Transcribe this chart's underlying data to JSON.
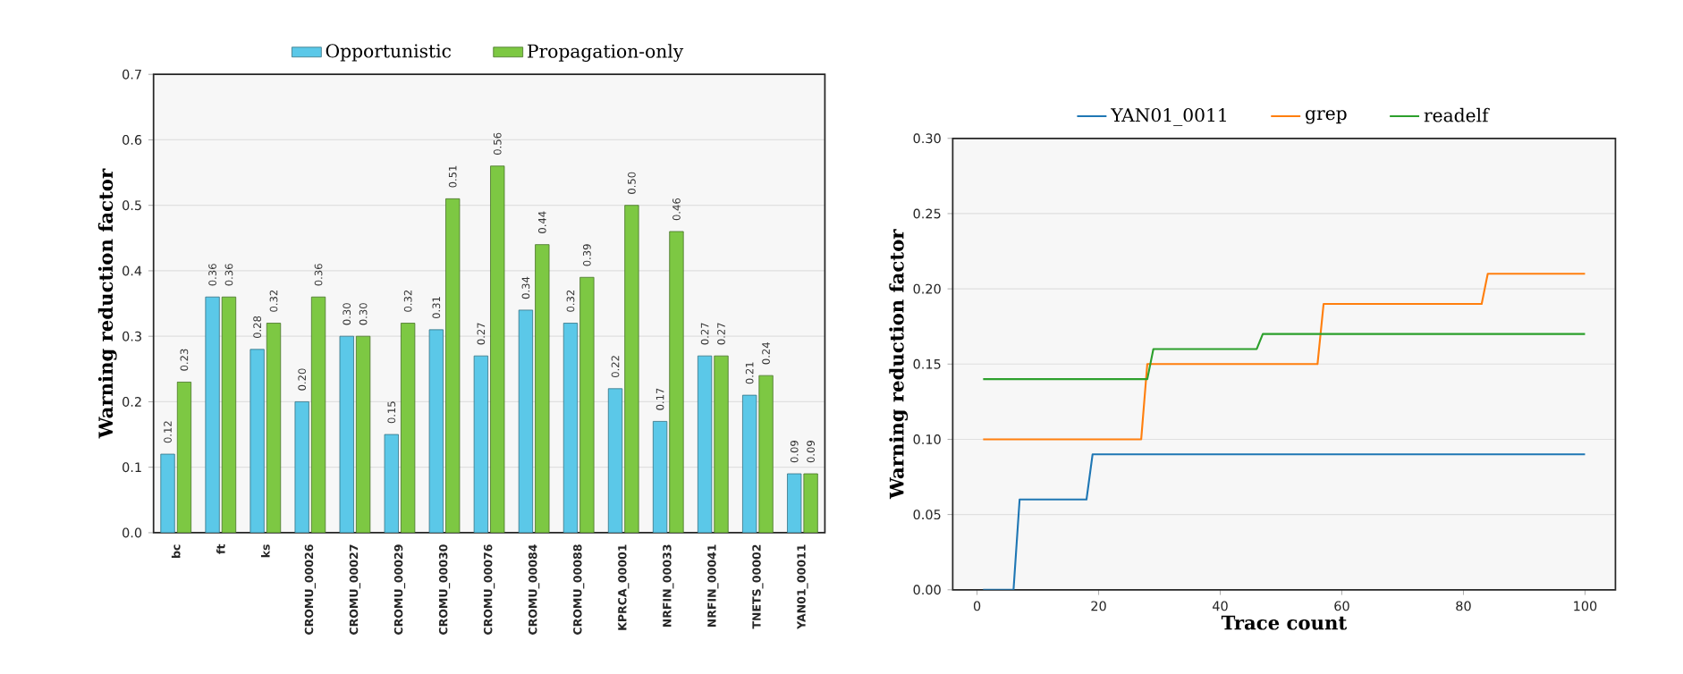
{
  "chart_data": [
    {
      "type": "bar",
      "ylabel": "Warning reduction factor",
      "categories": [
        "bc",
        "ft",
        "ks",
        "CROMU_00026",
        "CROMU_00027",
        "CROMU_00029",
        "CROMU_00030",
        "CROMU_00076",
        "CROMU_00084",
        "CROMU_00088",
        "KPRCA_00001",
        "NRFIN_00033",
        "NRFIN_00041",
        "TNETS_00002",
        "YAN01_00011"
      ],
      "series": [
        {
          "name": "Opportunistic",
          "color": "#5bc8e8",
          "values": [
            0.12,
            0.36,
            0.28,
            0.2,
            0.3,
            0.15,
            0.31,
            0.27,
            0.34,
            0.32,
            0.22,
            0.17,
            0.27,
            0.21,
            0.09
          ],
          "value_labels": [
            "0.12",
            "0.36",
            "0.28",
            "0.20",
            "0.30",
            "0.15",
            "0.31",
            "0.27",
            "0.34",
            "0.32",
            "0.22",
            "0.17",
            "0.27",
            "0.21",
            "0.09"
          ]
        },
        {
          "name": "Propagation-only",
          "color": "#7dc843",
          "values": [
            0.23,
            0.36,
            0.32,
            0.36,
            0.3,
            0.32,
            0.51,
            0.56,
            0.44,
            0.39,
            0.5,
            0.46,
            0.27,
            0.24,
            0.09
          ],
          "value_labels": [
            "0.23",
            "0.36",
            "0.32",
            "0.36",
            "0.30",
            "0.32",
            "0.51",
            "0.56",
            "0.44",
            "0.39",
            "0.50",
            "0.46",
            "0.27",
            "0.24",
            "0.09"
          ]
        }
      ],
      "ylim": [
        0,
        0.7
      ],
      "yticks": [
        {
          "value": 0,
          "label": "0.0"
        },
        {
          "value": 0.1,
          "label": "0.1"
        },
        {
          "value": 0.2,
          "label": "0.2"
        },
        {
          "value": 0.3,
          "label": "0.3"
        },
        {
          "value": 0.4,
          "label": "0.4"
        },
        {
          "value": 0.5,
          "label": "0.5"
        },
        {
          "value": 0.6,
          "label": "0.6"
        },
        {
          "value": 0.7,
          "label": "0.7"
        }
      ],
      "grid": "y",
      "legend": "top"
    },
    {
      "type": "line",
      "xlabel": "Trace count",
      "ylabel": "Warning reduction factor",
      "series": [
        {
          "name": "YAN01_0011",
          "color": "#1f77b4",
          "x": [
            1,
            6,
            7,
            18,
            19,
            100
          ],
          "values": [
            0,
            0,
            0.06,
            0.06,
            0.09,
            0.09
          ]
        },
        {
          "name": "grep",
          "color": "#ff7f0e",
          "x": [
            1,
            27,
            28,
            56,
            57,
            83,
            84,
            100
          ],
          "values": [
            0.1,
            0.1,
            0.15,
            0.15,
            0.19,
            0.19,
            0.21,
            0.21
          ]
        },
        {
          "name": "readelf",
          "color": "#2ca02c",
          "x": [
            1,
            28,
            29,
            46,
            47,
            100
          ],
          "values": [
            0.14,
            0.14,
            0.16,
            0.16,
            0.17,
            0.17
          ]
        }
      ],
      "xlim": [
        -4,
        105
      ],
      "xticks": [
        0,
        20,
        40,
        60,
        80,
        100
      ],
      "ylim": [
        0,
        0.3
      ],
      "yticks": [
        {
          "value": 0,
          "label": "0.00"
        },
        {
          "value": 0.05,
          "label": "0.05"
        },
        {
          "value": 0.1,
          "label": "0.10"
        },
        {
          "value": 0.15,
          "label": "0.15"
        },
        {
          "value": 0.2,
          "label": "0.20"
        },
        {
          "value": 0.25,
          "label": "0.25"
        },
        {
          "value": 0.3,
          "label": "0.30"
        }
      ],
      "grid": "y",
      "legend": "top"
    }
  ]
}
